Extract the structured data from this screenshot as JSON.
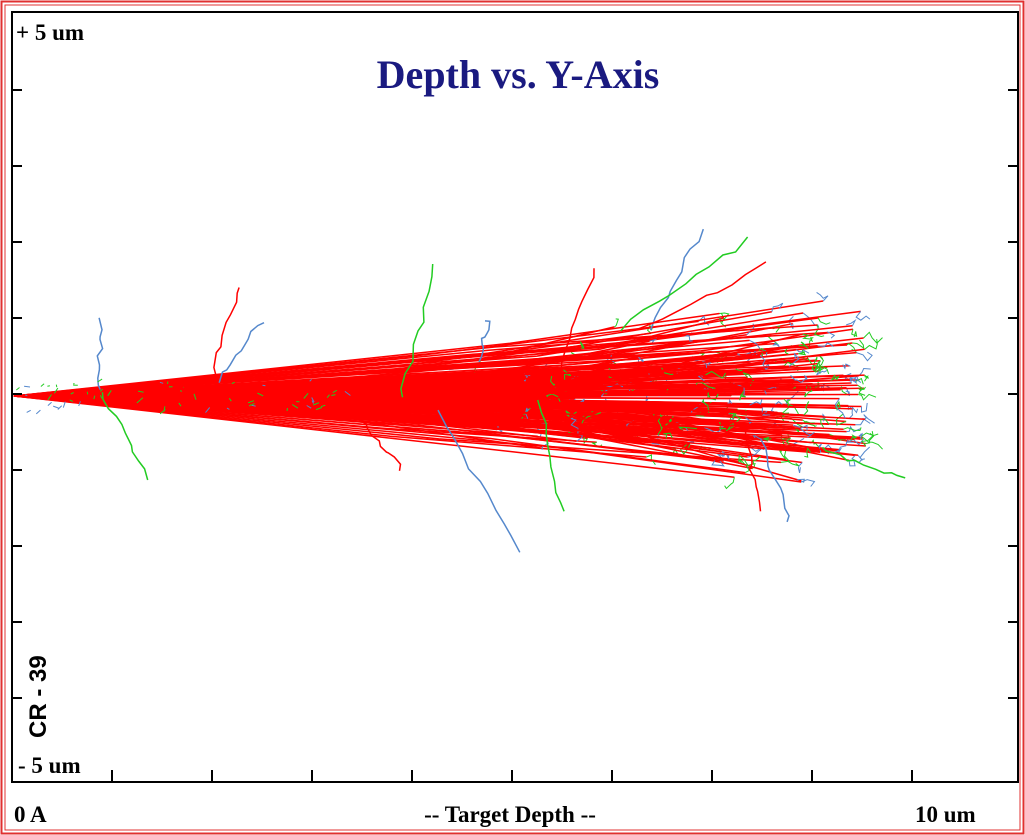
{
  "chart_data": {
    "type": "trajectory",
    "title": "Depth vs. Y-Axis",
    "y_top_label": "+ 5 um",
    "y_bottom_label": "- 5 um",
    "x_start_label": "0 A",
    "x_label": "-- Target Depth --",
    "x_end_label": "10 um",
    "material_label": "CR - 39"
  }
}
